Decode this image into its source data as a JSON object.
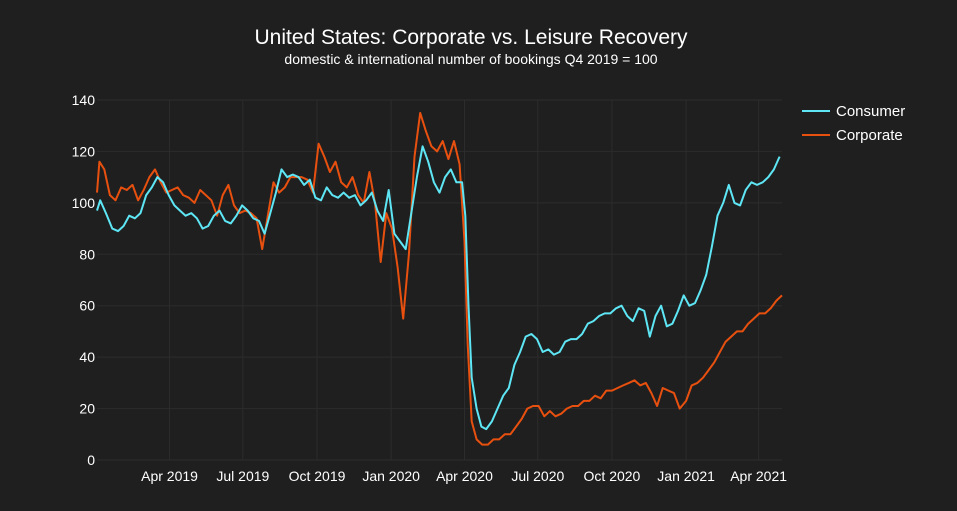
{
  "chart_data": {
    "type": "line",
    "title": "United States: Corporate vs. Leisure Recovery",
    "subtitle": "domestic & international number of bookings Q4 2019 = 100",
    "xlabel": "",
    "ylabel": "",
    "ylim": [
      0,
      140
    ],
    "yticks": [
      0,
      20,
      40,
      60,
      80,
      100,
      120,
      140
    ],
    "x_start": "2019-01-01",
    "x_end": "2021-04-30",
    "xticks": [
      {
        "date": "2019-04-01",
        "label": "Apr 2019"
      },
      {
        "date": "2019-07-01",
        "label": "Jul 2019"
      },
      {
        "date": "2019-10-01",
        "label": "Oct 2019"
      },
      {
        "date": "2020-01-01",
        "label": "Jan 2020"
      },
      {
        "date": "2020-04-01",
        "label": "Apr 2020"
      },
      {
        "date": "2020-07-01",
        "label": "Jul 2020"
      },
      {
        "date": "2020-10-01",
        "label": "Oct 2020"
      },
      {
        "date": "2021-01-01",
        "label": "Jan 2021"
      },
      {
        "date": "2021-04-01",
        "label": "Apr 2021"
      }
    ],
    "grid": true,
    "legend_position": "top-right",
    "series": [
      {
        "name": "Consumer",
        "color": "#5ee6f5",
        "points": [
          [
            "2019-01-01",
            97
          ],
          [
            "2019-01-05",
            101
          ],
          [
            "2019-01-12",
            96
          ],
          [
            "2019-01-20",
            90
          ],
          [
            "2019-01-27",
            89
          ],
          [
            "2019-02-03",
            91
          ],
          [
            "2019-02-10",
            95
          ],
          [
            "2019-02-17",
            94
          ],
          [
            "2019-02-24",
            96
          ],
          [
            "2019-03-03",
            103
          ],
          [
            "2019-03-10",
            106
          ],
          [
            "2019-03-17",
            110
          ],
          [
            "2019-03-24",
            108
          ],
          [
            "2019-03-31",
            103
          ],
          [
            "2019-04-07",
            99
          ],
          [
            "2019-04-14",
            97
          ],
          [
            "2019-04-21",
            95
          ],
          [
            "2019-04-28",
            96
          ],
          [
            "2019-05-05",
            94
          ],
          [
            "2019-05-12",
            90
          ],
          [
            "2019-05-19",
            91
          ],
          [
            "2019-05-26",
            95
          ],
          [
            "2019-06-02",
            97
          ],
          [
            "2019-06-09",
            93
          ],
          [
            "2019-06-16",
            92
          ],
          [
            "2019-06-23",
            95
          ],
          [
            "2019-06-30",
            99
          ],
          [
            "2019-07-07",
            97
          ],
          [
            "2019-07-14",
            94
          ],
          [
            "2019-07-21",
            93
          ],
          [
            "2019-07-28",
            88
          ],
          [
            "2019-08-04",
            96
          ],
          [
            "2019-08-11",
            104
          ],
          [
            "2019-08-18",
            113
          ],
          [
            "2019-08-25",
            110
          ],
          [
            "2019-09-01",
            111
          ],
          [
            "2019-09-08",
            110
          ],
          [
            "2019-09-15",
            107
          ],
          [
            "2019-09-22",
            109
          ],
          [
            "2019-09-29",
            102
          ],
          [
            "2019-10-06",
            101
          ],
          [
            "2019-10-13",
            106
          ],
          [
            "2019-10-20",
            103
          ],
          [
            "2019-10-27",
            102
          ],
          [
            "2019-11-03",
            104
          ],
          [
            "2019-11-10",
            102
          ],
          [
            "2019-11-17",
            103
          ],
          [
            "2019-11-24",
            99
          ],
          [
            "2019-12-01",
            101
          ],
          [
            "2019-12-08",
            104
          ],
          [
            "2019-12-15",
            97
          ],
          [
            "2019-12-22",
            93
          ],
          [
            "2019-12-29",
            105
          ],
          [
            "2020-01-05",
            88
          ],
          [
            "2020-01-12",
            85
          ],
          [
            "2020-01-19",
            82
          ],
          [
            "2020-01-26",
            96
          ],
          [
            "2020-02-02",
            110
          ],
          [
            "2020-02-09",
            122
          ],
          [
            "2020-02-16",
            116
          ],
          [
            "2020-02-23",
            108
          ],
          [
            "2020-03-01",
            104
          ],
          [
            "2020-03-08",
            110
          ],
          [
            "2020-03-15",
            113
          ],
          [
            "2020-03-22",
            108
          ],
          [
            "2020-03-29",
            108
          ],
          [
            "2020-04-02",
            95
          ],
          [
            "2020-04-06",
            60
          ],
          [
            "2020-04-10",
            32
          ],
          [
            "2020-04-16",
            20
          ],
          [
            "2020-04-22",
            13
          ],
          [
            "2020-04-28",
            12
          ],
          [
            "2020-05-05",
            15
          ],
          [
            "2020-05-12",
            20
          ],
          [
            "2020-05-19",
            25
          ],
          [
            "2020-05-26",
            28
          ],
          [
            "2020-06-02",
            37
          ],
          [
            "2020-06-09",
            42
          ],
          [
            "2020-06-16",
            48
          ],
          [
            "2020-06-23",
            49
          ],
          [
            "2020-06-30",
            47
          ],
          [
            "2020-07-07",
            42
          ],
          [
            "2020-07-14",
            43
          ],
          [
            "2020-07-21",
            41
          ],
          [
            "2020-07-28",
            42
          ],
          [
            "2020-08-04",
            46
          ],
          [
            "2020-08-11",
            47
          ],
          [
            "2020-08-18",
            47
          ],
          [
            "2020-08-25",
            49
          ],
          [
            "2020-09-01",
            53
          ],
          [
            "2020-09-08",
            54
          ],
          [
            "2020-09-15",
            56
          ],
          [
            "2020-09-22",
            57
          ],
          [
            "2020-09-29",
            57
          ],
          [
            "2020-10-06",
            59
          ],
          [
            "2020-10-13",
            60
          ],
          [
            "2020-10-20",
            56
          ],
          [
            "2020-10-27",
            54
          ],
          [
            "2020-11-03",
            59
          ],
          [
            "2020-11-10",
            58
          ],
          [
            "2020-11-17",
            48
          ],
          [
            "2020-11-24",
            56
          ],
          [
            "2020-12-01",
            60
          ],
          [
            "2020-12-08",
            52
          ],
          [
            "2020-12-15",
            53
          ],
          [
            "2020-12-22",
            58
          ],
          [
            "2020-12-29",
            64
          ],
          [
            "2021-01-05",
            60
          ],
          [
            "2021-01-12",
            61
          ],
          [
            "2021-01-19",
            66
          ],
          [
            "2021-01-26",
            72
          ],
          [
            "2021-02-02",
            83
          ],
          [
            "2021-02-09",
            95
          ],
          [
            "2021-02-16",
            100
          ],
          [
            "2021-02-23",
            107
          ],
          [
            "2021-03-02",
            100
          ],
          [
            "2021-03-09",
            99
          ],
          [
            "2021-03-16",
            105
          ],
          [
            "2021-03-23",
            108
          ],
          [
            "2021-03-30",
            107
          ],
          [
            "2021-04-06",
            108
          ],
          [
            "2021-04-13",
            110
          ],
          [
            "2021-04-20",
            113
          ],
          [
            "2021-04-27",
            118
          ]
        ]
      },
      {
        "name": "Corporate",
        "color": "#e8500f",
        "points": [
          [
            "2019-01-01",
            104
          ],
          [
            "2019-01-04",
            116
          ],
          [
            "2019-01-10",
            113
          ],
          [
            "2019-01-17",
            103
          ],
          [
            "2019-01-24",
            101
          ],
          [
            "2019-01-31",
            106
          ],
          [
            "2019-02-07",
            105
          ],
          [
            "2019-02-14",
            107
          ],
          [
            "2019-02-21",
            101
          ],
          [
            "2019-02-28",
            105
          ],
          [
            "2019-03-07",
            110
          ],
          [
            "2019-03-14",
            113
          ],
          [
            "2019-03-21",
            108
          ],
          [
            "2019-03-28",
            104
          ],
          [
            "2019-04-04",
            105
          ],
          [
            "2019-04-11",
            106
          ],
          [
            "2019-04-18",
            103
          ],
          [
            "2019-04-25",
            102
          ],
          [
            "2019-05-02",
            100
          ],
          [
            "2019-05-09",
            105
          ],
          [
            "2019-05-16",
            103
          ],
          [
            "2019-05-23",
            101
          ],
          [
            "2019-05-30",
            95
          ],
          [
            "2019-06-06",
            103
          ],
          [
            "2019-06-13",
            107
          ],
          [
            "2019-06-20",
            99
          ],
          [
            "2019-06-27",
            96
          ],
          [
            "2019-07-04",
            97
          ],
          [
            "2019-07-11",
            96
          ],
          [
            "2019-07-18",
            94
          ],
          [
            "2019-07-25",
            82
          ],
          [
            "2019-08-01",
            95
          ],
          [
            "2019-08-08",
            108
          ],
          [
            "2019-08-15",
            104
          ],
          [
            "2019-08-22",
            106
          ],
          [
            "2019-08-29",
            110
          ],
          [
            "2019-09-05",
            110
          ],
          [
            "2019-09-12",
            110
          ],
          [
            "2019-09-19",
            109
          ],
          [
            "2019-09-26",
            104
          ],
          [
            "2019-10-03",
            123
          ],
          [
            "2019-10-10",
            118
          ],
          [
            "2019-10-17",
            112
          ],
          [
            "2019-10-24",
            116
          ],
          [
            "2019-10-31",
            108
          ],
          [
            "2019-11-07",
            106
          ],
          [
            "2019-11-14",
            110
          ],
          [
            "2019-11-21",
            103
          ],
          [
            "2019-11-28",
            100
          ],
          [
            "2019-12-05",
            112
          ],
          [
            "2019-12-12",
            100
          ],
          [
            "2019-12-19",
            77
          ],
          [
            "2019-12-26",
            96
          ],
          [
            "2020-01-02",
            90
          ],
          [
            "2020-01-09",
            75
          ],
          [
            "2020-01-16",
            55
          ],
          [
            "2020-01-23",
            80
          ],
          [
            "2020-01-30",
            118
          ],
          [
            "2020-02-06",
            135
          ],
          [
            "2020-02-13",
            128
          ],
          [
            "2020-02-20",
            122
          ],
          [
            "2020-02-27",
            120
          ],
          [
            "2020-03-05",
            124
          ],
          [
            "2020-03-12",
            117
          ],
          [
            "2020-03-19",
            124
          ],
          [
            "2020-03-26",
            115
          ],
          [
            "2020-04-01",
            85
          ],
          [
            "2020-04-05",
            45
          ],
          [
            "2020-04-10",
            15
          ],
          [
            "2020-04-16",
            8
          ],
          [
            "2020-04-23",
            6
          ],
          [
            "2020-04-30",
            6
          ],
          [
            "2020-05-07",
            8
          ],
          [
            "2020-05-14",
            8
          ],
          [
            "2020-05-21",
            10
          ],
          [
            "2020-05-28",
            10
          ],
          [
            "2020-06-04",
            13
          ],
          [
            "2020-06-11",
            16
          ],
          [
            "2020-06-18",
            20
          ],
          [
            "2020-06-25",
            21
          ],
          [
            "2020-07-02",
            21
          ],
          [
            "2020-07-09",
            17
          ],
          [
            "2020-07-16",
            19
          ],
          [
            "2020-07-23",
            17
          ],
          [
            "2020-07-30",
            18
          ],
          [
            "2020-08-06",
            20
          ],
          [
            "2020-08-13",
            21
          ],
          [
            "2020-08-20",
            21
          ],
          [
            "2020-08-27",
            23
          ],
          [
            "2020-09-03",
            23
          ],
          [
            "2020-09-10",
            25
          ],
          [
            "2020-09-17",
            24
          ],
          [
            "2020-09-24",
            27
          ],
          [
            "2020-10-01",
            27
          ],
          [
            "2020-10-08",
            28
          ],
          [
            "2020-10-15",
            29
          ],
          [
            "2020-10-22",
            30
          ],
          [
            "2020-10-29",
            31
          ],
          [
            "2020-11-05",
            29
          ],
          [
            "2020-11-12",
            30
          ],
          [
            "2020-11-19",
            26
          ],
          [
            "2020-11-26",
            21
          ],
          [
            "2020-12-03",
            28
          ],
          [
            "2020-12-10",
            27
          ],
          [
            "2020-12-17",
            26
          ],
          [
            "2020-12-24",
            20
          ],
          [
            "2021-01-01",
            23
          ],
          [
            "2021-01-08",
            29
          ],
          [
            "2021-01-15",
            30
          ],
          [
            "2021-01-22",
            32
          ],
          [
            "2021-01-29",
            35
          ],
          [
            "2021-02-05",
            38
          ],
          [
            "2021-02-12",
            42
          ],
          [
            "2021-02-19",
            46
          ],
          [
            "2021-02-26",
            48
          ],
          [
            "2021-03-05",
            50
          ],
          [
            "2021-03-12",
            50
          ],
          [
            "2021-03-19",
            53
          ],
          [
            "2021-03-26",
            55
          ],
          [
            "2021-04-02",
            57
          ],
          [
            "2021-04-09",
            57
          ],
          [
            "2021-04-16",
            59
          ],
          [
            "2021-04-23",
            62
          ],
          [
            "2021-04-30",
            64
          ]
        ]
      }
    ]
  }
}
